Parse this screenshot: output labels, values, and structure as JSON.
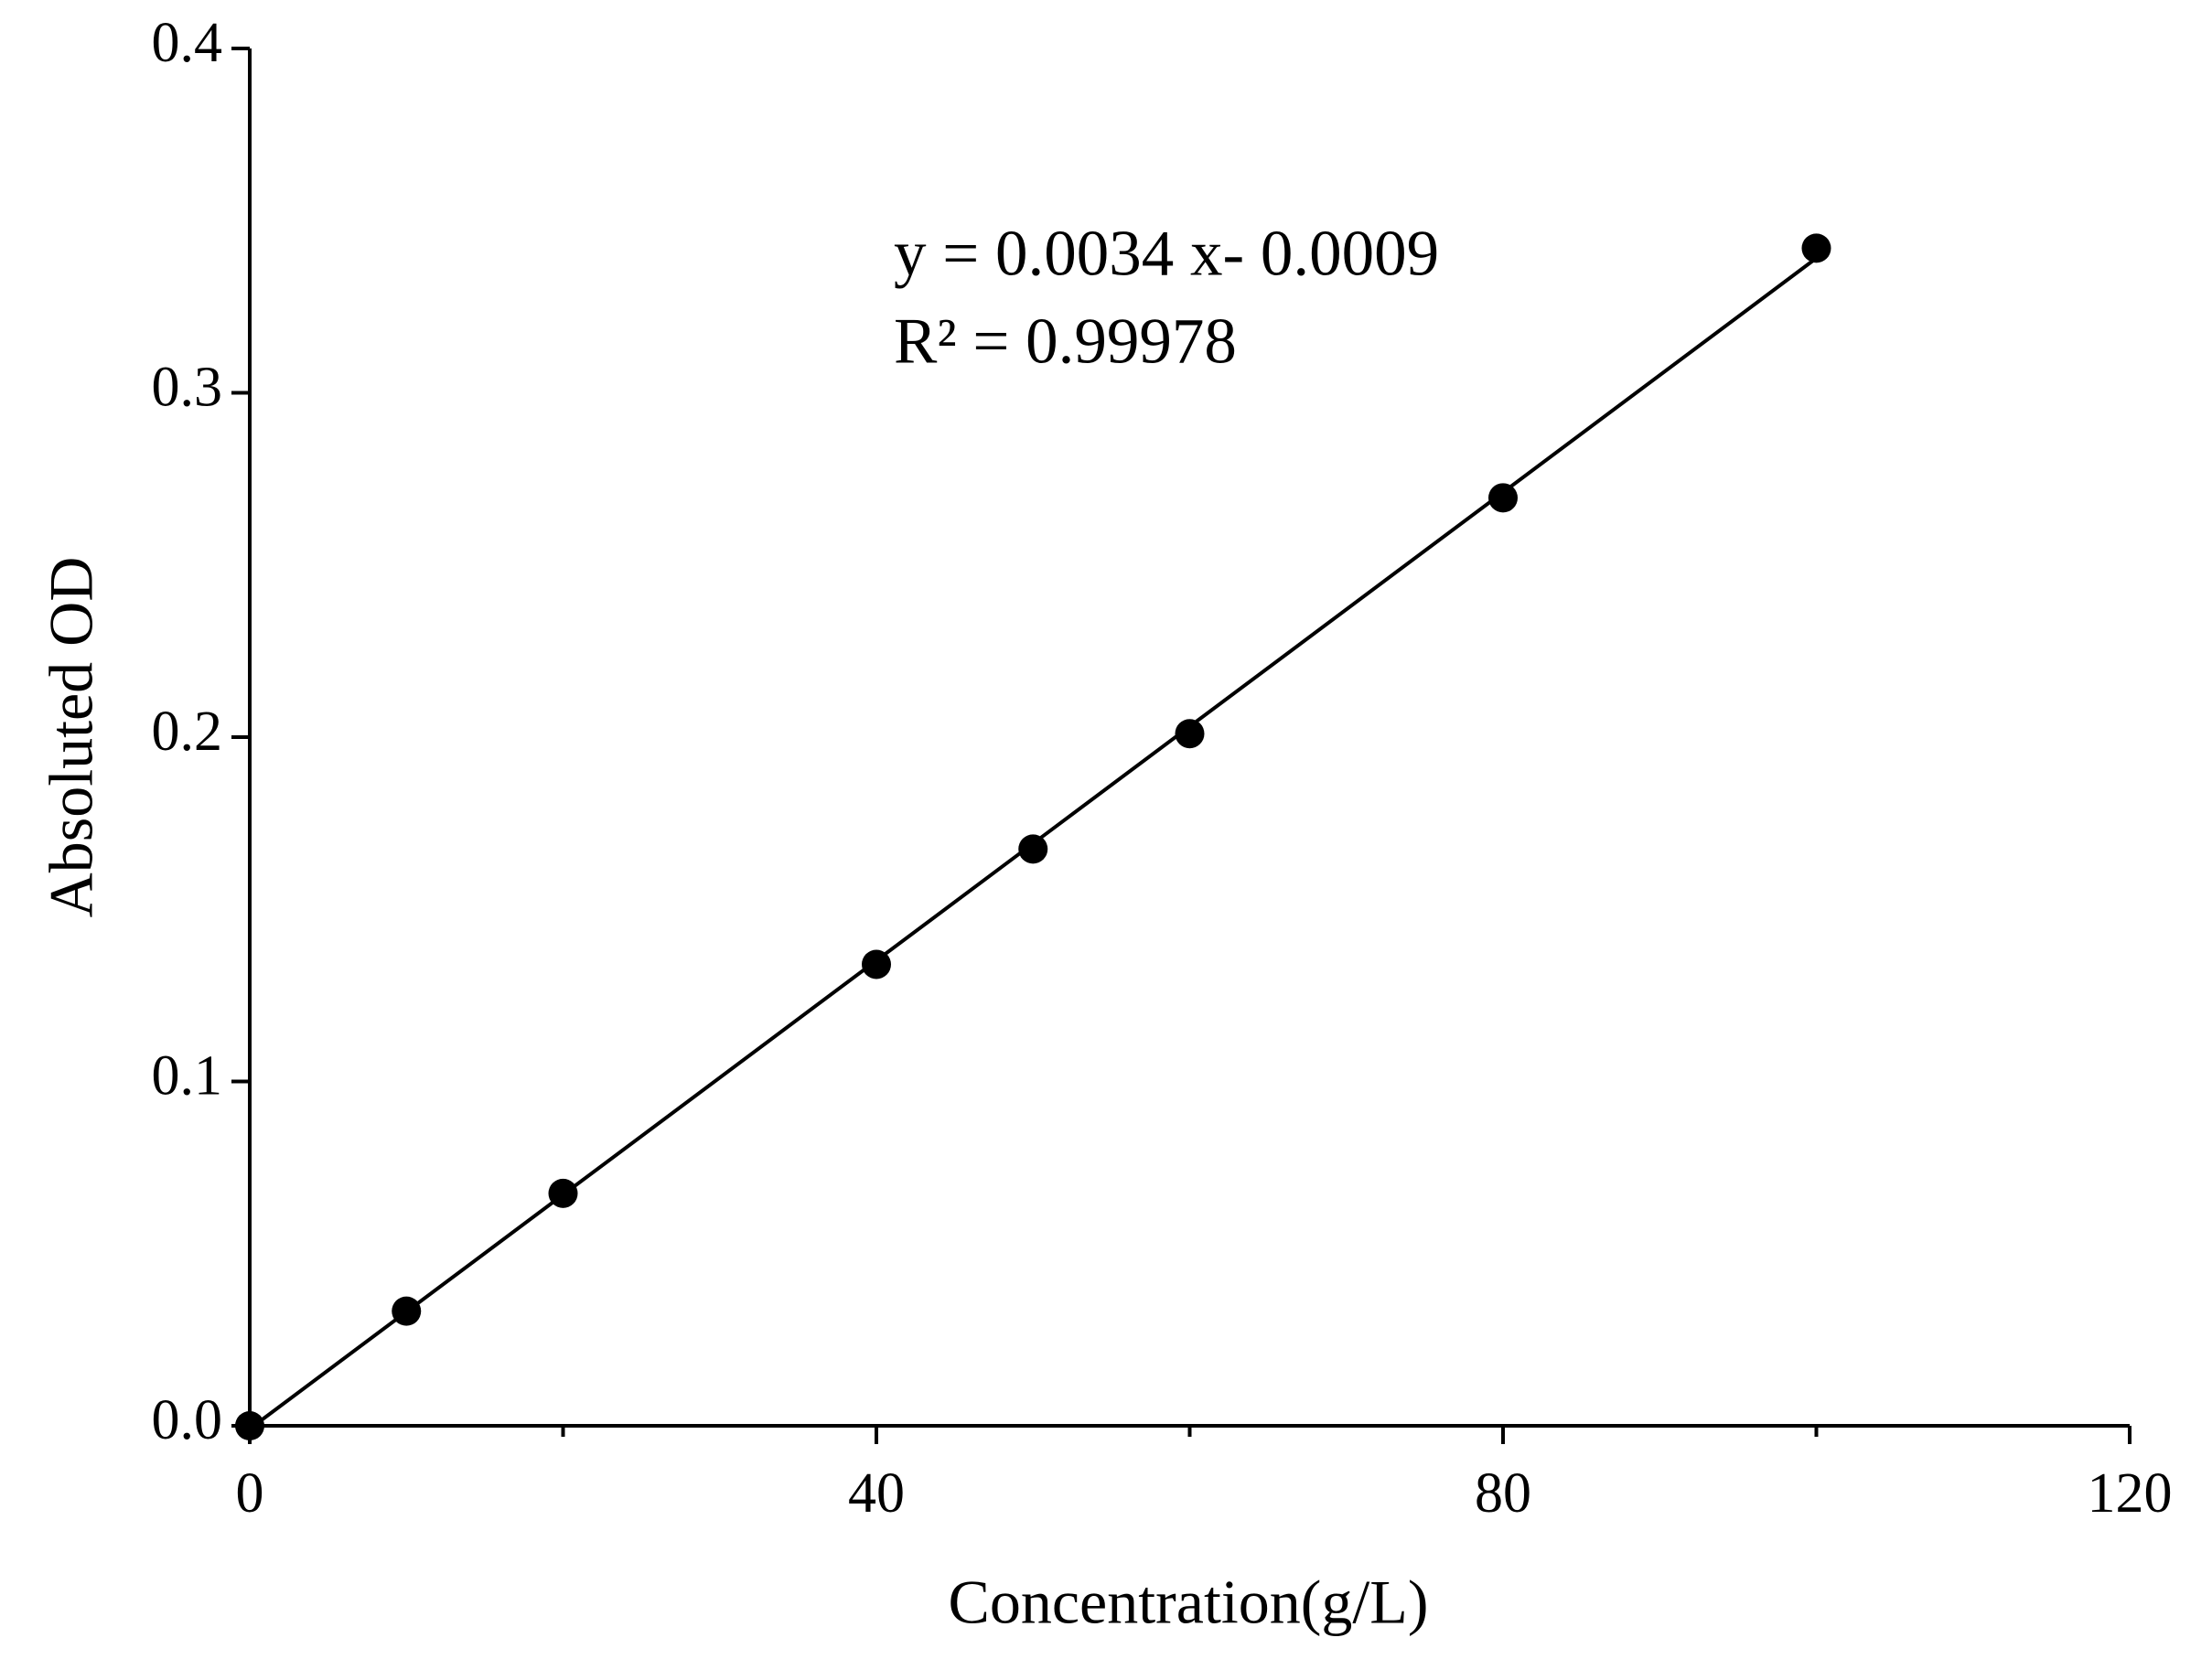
{
  "chart_data": {
    "type": "scatter",
    "x_label": "Concentration(g/L)",
    "y_label": "Absoluted OD",
    "annotations": [
      "y = 0.0034 x- 0.0009",
      "R² = 0.99978"
    ],
    "x": [
      0,
      10,
      20,
      40,
      50,
      60,
      80,
      100
    ],
    "values": [
      0.0,
      0.0333,
      0.0675,
      0.134,
      0.1675,
      0.201,
      0.2695,
      0.342
    ],
    "color": "#000000",
    "fit_line": {
      "x": [
        0,
        100
      ],
      "values": [
        -0.0009,
        0.3391
      ]
    },
    "xlim": [
      0,
      120
    ],
    "xticks": [
      0,
      40,
      80,
      120
    ],
    "xminorticks": [
      20,
      60,
      100
    ],
    "ylim": [
      0,
      0.4
    ],
    "yticks": [
      {
        "value": 0,
        "label": "0.0"
      },
      0.1,
      0.2,
      0.3,
      0.4
    ],
    "grid": false
  }
}
